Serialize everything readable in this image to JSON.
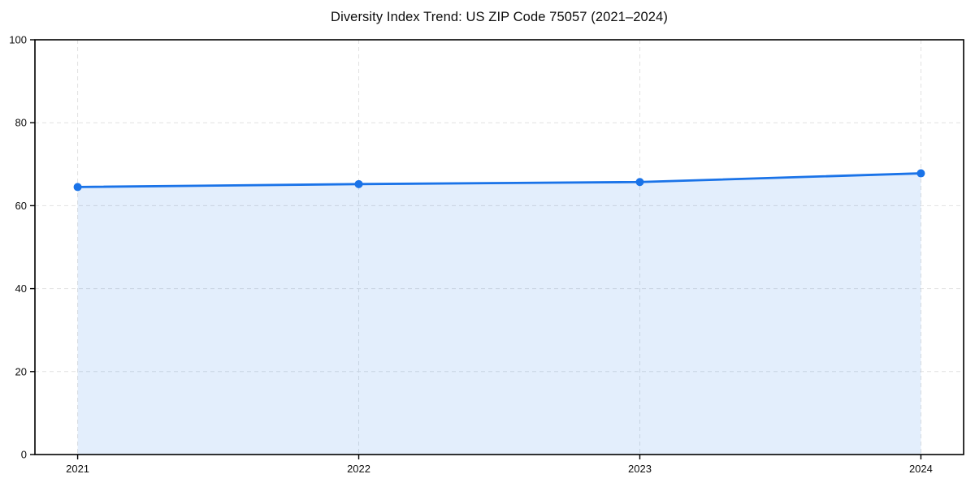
{
  "chart_data": {
    "type": "area",
    "title": "Diversity Index Trend: US ZIP Code 75057 (2021–2024)",
    "x": [
      2021,
      2022,
      2023,
      2024
    ],
    "values": [
      64.5,
      65.2,
      65.7,
      67.8
    ],
    "xticks": [
      "2021",
      "2022",
      "2023",
      "2024"
    ],
    "yticks": [
      0,
      20,
      40,
      60,
      80,
      100
    ],
    "ylim": [
      0,
      100
    ],
    "xlabel": "",
    "ylabel": "",
    "grid": true,
    "grid_style": "dashed",
    "legend": false,
    "marker": "circle",
    "colors": {
      "line": "#1a73e8",
      "marker": "#1a73e8",
      "fill": "rgba(26,115,232,0.12)",
      "grid": "#e1e1e1",
      "axis": "#000000",
      "text": "#0d0d0d",
      "background": "#ffffff"
    }
  }
}
